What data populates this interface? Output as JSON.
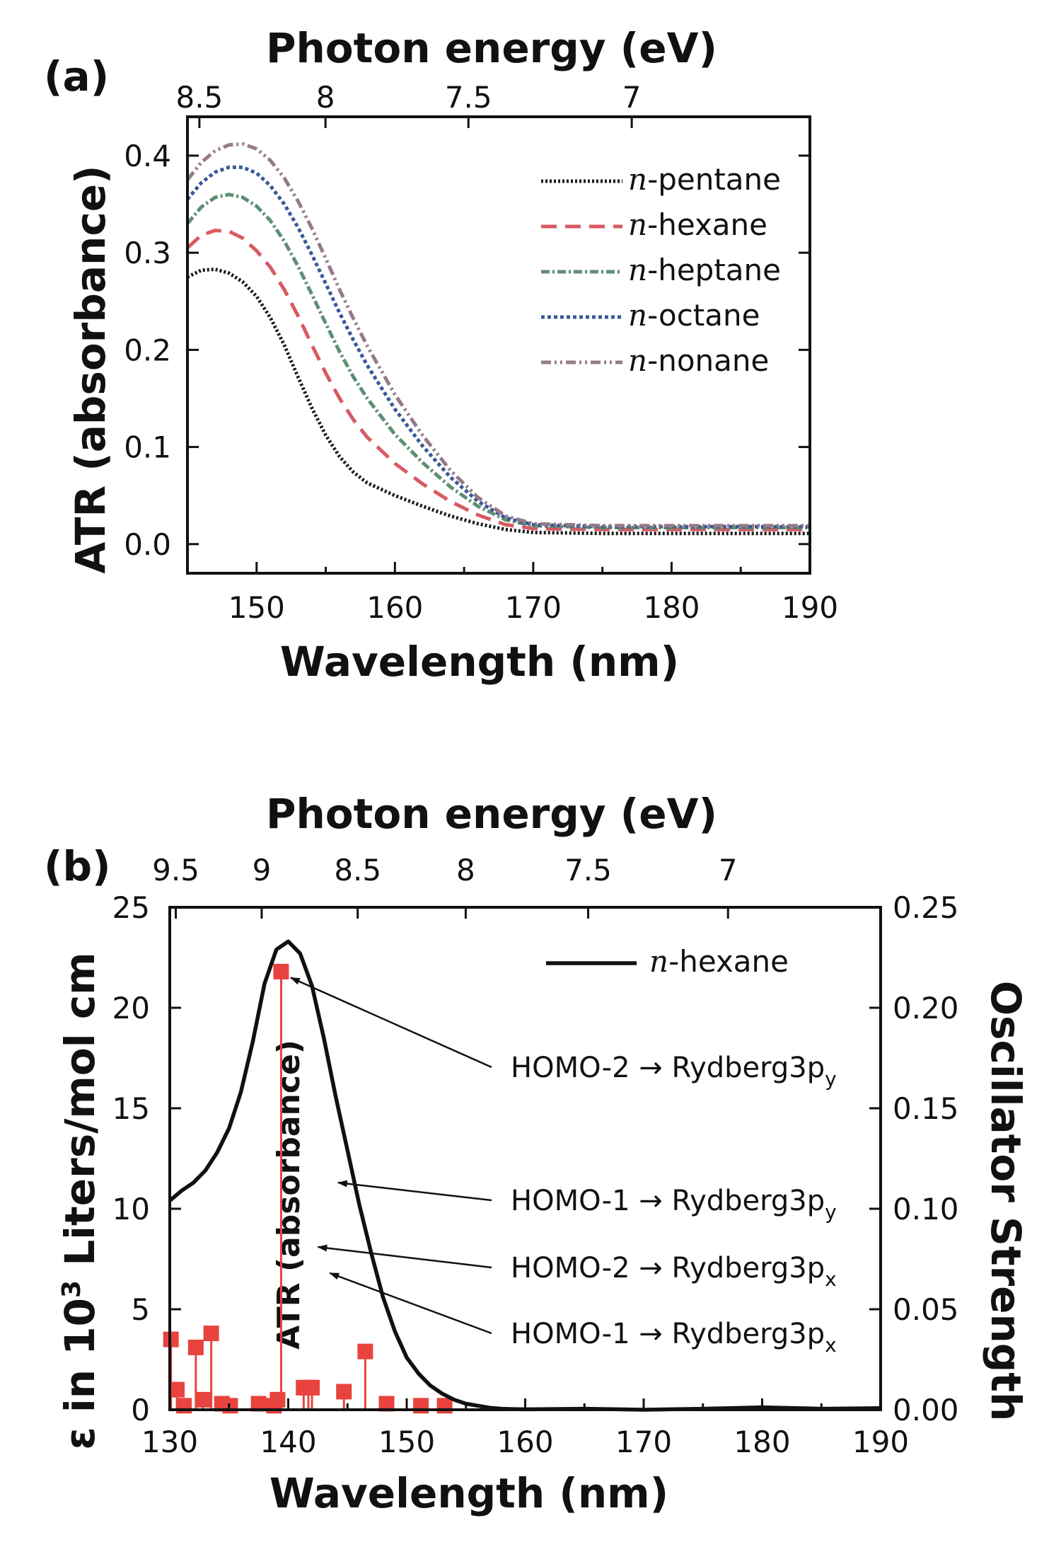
{
  "chart_data": [
    {
      "panel": "(a)",
      "type": "line",
      "xlabel": "Wavelength (nm)",
      "ylabel": "ATR (absorbance)",
      "top_axis_label": "Photon energy (eV)",
      "xlim": [
        145,
        190
      ],
      "ylim": [
        -0.03,
        0.44
      ],
      "x_ticks": [
        150,
        160,
        170,
        180,
        190
      ],
      "y_ticks": [
        0.0,
        0.1,
        0.2,
        0.3,
        0.4
      ],
      "y_tick_labels": [
        "0.0",
        "0.1",
        "0.2",
        "0.3",
        "0.4"
      ],
      "top_ticks": [
        8.5,
        8,
        7.5,
        7
      ],
      "top_tick_labels": [
        "8.5",
        "8",
        "7.5",
        "7"
      ],
      "legend_position": "top-right",
      "series": [
        {
          "name_prefix": "n",
          "name_suffix": "-pentane",
          "color": "#1a1a1a",
          "dash": "3 3",
          "x": [
            145,
            146,
            147,
            148,
            149,
            150,
            151,
            152,
            153,
            154,
            155,
            156,
            157,
            158,
            160,
            162,
            164,
            166,
            168,
            170,
            175,
            180,
            185,
            190
          ],
          "y": [
            0.275,
            0.282,
            0.283,
            0.279,
            0.27,
            0.255,
            0.233,
            0.205,
            0.172,
            0.14,
            0.112,
            0.09,
            0.074,
            0.063,
            0.05,
            0.039,
            0.029,
            0.021,
            0.015,
            0.012,
            0.011,
            0.011,
            0.011,
            0.011
          ]
        },
        {
          "name_prefix": "n",
          "name_suffix": "-hexane",
          "color": "#d85a62",
          "dash": "22 12",
          "x": [
            145,
            146,
            147,
            148,
            149,
            150,
            151,
            152,
            153,
            154,
            155,
            156,
            157,
            158,
            160,
            162,
            164,
            166,
            168,
            170,
            175,
            180,
            185,
            190
          ],
          "y": [
            0.305,
            0.318,
            0.323,
            0.322,
            0.315,
            0.302,
            0.285,
            0.262,
            0.235,
            0.205,
            0.176,
            0.15,
            0.128,
            0.11,
            0.083,
            0.062,
            0.044,
            0.03,
            0.02,
            0.016,
            0.015,
            0.015,
            0.015,
            0.015
          ]
        },
        {
          "name_prefix": "n",
          "name_suffix": "-heptane",
          "color": "#5e8f72",
          "dash": "12 4 3 4",
          "x": [
            145,
            146,
            147,
            148,
            149,
            150,
            151,
            152,
            153,
            154,
            155,
            156,
            157,
            158,
            160,
            162,
            164,
            166,
            168,
            170,
            175,
            180,
            185,
            190
          ],
          "y": [
            0.33,
            0.347,
            0.357,
            0.36,
            0.357,
            0.348,
            0.333,
            0.312,
            0.286,
            0.257,
            0.227,
            0.198,
            0.172,
            0.15,
            0.113,
            0.084,
            0.059,
            0.039,
            0.025,
            0.019,
            0.017,
            0.017,
            0.017,
            0.017
          ]
        },
        {
          "name_prefix": "n",
          "name_suffix": "-octane",
          "color": "#3a5898",
          "dash": "5 4",
          "x": [
            145,
            146,
            147,
            148,
            149,
            150,
            151,
            152,
            153,
            154,
            155,
            156,
            157,
            158,
            160,
            162,
            164,
            166,
            168,
            170,
            175,
            180,
            185,
            190
          ],
          "y": [
            0.355,
            0.372,
            0.383,
            0.388,
            0.388,
            0.382,
            0.369,
            0.35,
            0.326,
            0.298,
            0.268,
            0.238,
            0.21,
            0.184,
            0.139,
            0.101,
            0.069,
            0.044,
            0.027,
            0.02,
            0.018,
            0.018,
            0.018,
            0.018
          ]
        },
        {
          "name_prefix": "n",
          "name_suffix": "-nonane",
          "color": "#957a87",
          "dash": "14 5 3 5 3 5",
          "x": [
            145,
            146,
            147,
            148,
            149,
            150,
            151,
            152,
            153,
            154,
            155,
            156,
            157,
            158,
            160,
            162,
            164,
            166,
            168,
            170,
            175,
            180,
            185,
            190
          ],
          "y": [
            0.375,
            0.393,
            0.405,
            0.411,
            0.412,
            0.407,
            0.395,
            0.377,
            0.353,
            0.325,
            0.294,
            0.262,
            0.232,
            0.204,
            0.154,
            0.112,
            0.076,
            0.048,
            0.029,
            0.021,
            0.019,
            0.019,
            0.019,
            0.019
          ]
        }
      ]
    },
    {
      "panel": "(b)",
      "type": "line",
      "xlabel": "Wavelength (nm)",
      "ylabel": "ε in 10³ Liters/mol cm",
      "ylabel_symbol": "ε",
      "ylabel_rest": " in 10",
      "ylabel_sup": "3",
      "ylabel_tail": " Liters/mol cm",
      "y2label": "Oscillator Strength",
      "top_axis_label": "Photon energy (eV)",
      "inner_label": "ATR (absorbance)",
      "xlim": [
        130,
        190
      ],
      "ylim": [
        0,
        25
      ],
      "y2lim": [
        0,
        0.25
      ],
      "x_ticks": [
        130,
        140,
        150,
        160,
        170,
        180,
        190
      ],
      "y_ticks": [
        0,
        5,
        10,
        15,
        20,
        25
      ],
      "y2_ticks": [
        0.0,
        0.05,
        0.1,
        0.15,
        0.2,
        0.25
      ],
      "y2_tick_labels": [
        "0.00",
        "0.05",
        "0.10",
        "0.15",
        "0.20",
        "0.25"
      ],
      "top_ticks": [
        9.5,
        9,
        8.5,
        8,
        7.5,
        7
      ],
      "top_tick_labels": [
        "9.5",
        "9",
        "8.5",
        "8",
        "7.5",
        "7"
      ],
      "legend_position": "top-right",
      "series": [
        {
          "name_prefix": "n",
          "name_suffix": "-hexane",
          "color": "#111111",
          "x": [
            130,
            131,
            132,
            133,
            134,
            135,
            136,
            137,
            138,
            139,
            140,
            141,
            142,
            143,
            144,
            145,
            146,
            147,
            148,
            149,
            150,
            151,
            152,
            153,
            154,
            155,
            156,
            157,
            158,
            159,
            160,
            165,
            170,
            175,
            180,
            185,
            190
          ],
          "y": [
            10.4,
            10.9,
            11.3,
            11.9,
            12.8,
            14.0,
            15.8,
            18.3,
            21.2,
            22.9,
            23.3,
            22.7,
            21.1,
            18.5,
            15.6,
            12.9,
            10.2,
            7.8,
            5.6,
            3.9,
            2.6,
            1.8,
            1.2,
            0.8,
            0.5,
            0.3,
            0.2,
            0.1,
            0.05,
            0.03,
            0.02,
            0.05,
            0.0,
            0.05,
            0.12,
            0.05,
            0.08
          ]
        }
      ],
      "oscillator_sticks": {
        "color": "#e8433e",
        "x": [
          130.1,
          130.6,
          131.2,
          132.2,
          132.8,
          133.5,
          134.4,
          135.1,
          137.5,
          138.8,
          139.1,
          139.4,
          141.3,
          141.7,
          142.0,
          144.7,
          146.5,
          148.3,
          151.2,
          153.2
        ],
        "f": [
          0.035,
          0.01,
          0.002,
          0.031,
          0.005,
          0.038,
          0.003,
          0.002,
          0.003,
          0.002,
          0.005,
          0.218,
          0.011,
          0.011,
          0.011,
          0.009,
          0.029,
          0.003,
          0.002,
          0.002
        ]
      },
      "annotations": [
        {
          "prefix": "HOMO-2 → Rydberg3p",
          "sub": "y",
          "target_x": 140.2,
          "target_y": 21.5
        },
        {
          "prefix": "HOMO-1 → Rydberg3p",
          "sub": "y",
          "target_x": 144.2,
          "target_y": 11.3
        },
        {
          "prefix": "HOMO-2 → Rydberg3p",
          "sub": "x",
          "target_x": 142.5,
          "target_y": 8.1
        },
        {
          "prefix": "HOMO-1 → Rydberg3p",
          "sub": "x",
          "target_x": 143.5,
          "target_y": 6.8
        }
      ]
    }
  ]
}
